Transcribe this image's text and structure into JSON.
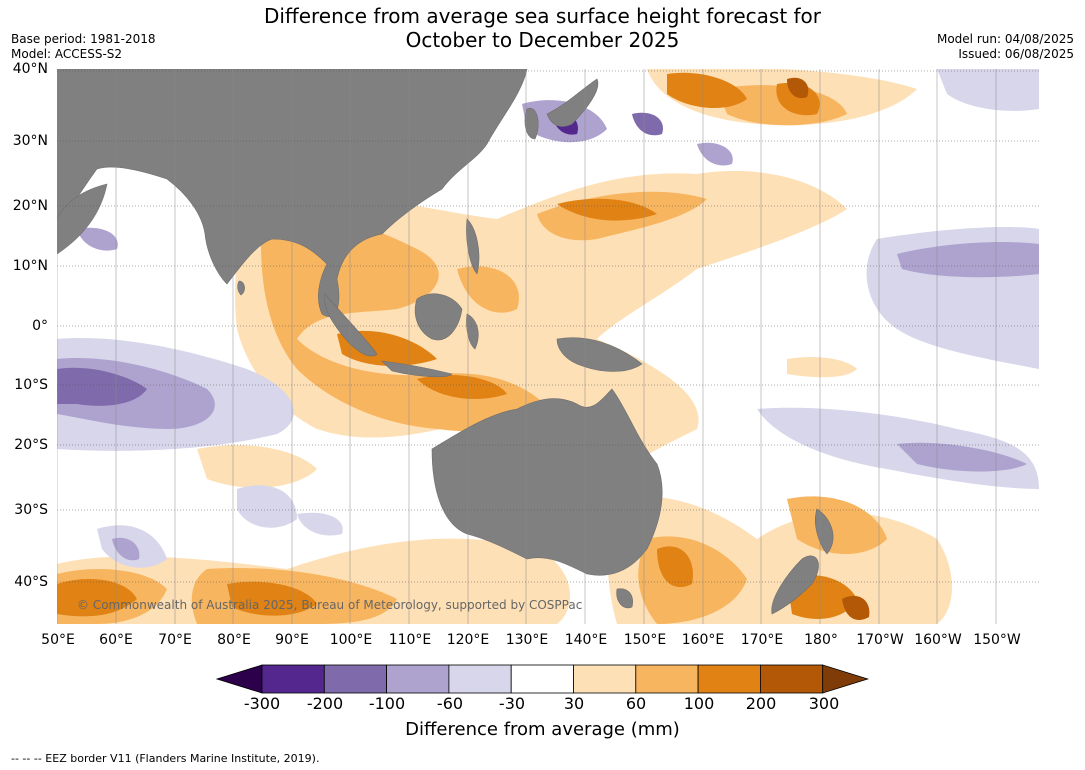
{
  "title_line1": "Difference from average sea surface height forecast for",
  "title_line2": "October to December 2025",
  "base_period": "Base period: 1981-2018",
  "model": "Model: ACCESS-S2",
  "model_run": "Model run: 04/08/2025",
  "issued": "Issued: 06/08/2025",
  "lat_labels": [
    "40°N",
    "30°N",
    "20°N",
    "10°N",
    "0°",
    "10°S",
    "20°S",
    "30°S",
    "40°S"
  ],
  "lon_labels": [
    "50°E",
    "60°E",
    "70°E",
    "80°E",
    "90°E",
    "100°E",
    "110°E",
    "120°E",
    "130°E",
    "140°E",
    "150°E",
    "160°E",
    "170°E",
    "180°",
    "170°W",
    "160°W",
    "150°W"
  ],
  "copyright": "© Commonwealth of Australia 2025, Bureau of Meteorology, supported by COSPPac",
  "colorbar": {
    "ticks": [
      "-300",
      "-200",
      "-100",
      "-60",
      "-30",
      "30",
      "60",
      "100",
      "200",
      "300"
    ],
    "colors": [
      "#54278f",
      "#7f6aab",
      "#aea3cf",
      "#d7d6ea",
      "#ffffff",
      "#fee0b6",
      "#f8b55f",
      "#e08214",
      "#b35806"
    ],
    "under_color": "#2d004b",
    "over_color": "#7f3b08",
    "title": "Difference from average (mm)"
  },
  "footer": "--  --  -- EEZ border V11 (Flanders Marine Institute, 2019).",
  "colors": {
    "land": "#808080",
    "grid": "#555555"
  }
}
